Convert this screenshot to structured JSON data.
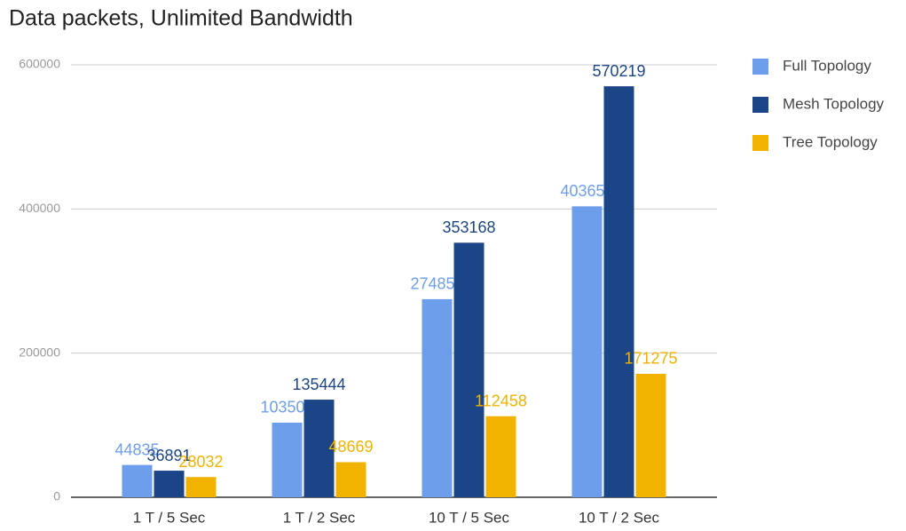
{
  "chart_data": {
    "type": "bar",
    "title": "Data packets, Unlimited Bandwidth",
    "categories": [
      "1 T / 5 Sec",
      "1 T / 2 Sec",
      "10 T / 5 Sec",
      "10 T / 2 Sec"
    ],
    "series": [
      {
        "name": "Full Topology",
        "color": "#6d9eeb",
        "values": [
          44835,
          103504,
          274855,
          403659
        ]
      },
      {
        "name": "Mesh Topology",
        "color": "#1c4587",
        "values": [
          36891,
          135444,
          353168,
          570219
        ]
      },
      {
        "name": "Tree Topology",
        "color": "#f1b300",
        "values": [
          28032,
          48669,
          112458,
          171275
        ]
      }
    ],
    "ylim": [
      0,
      600000
    ],
    "yticks": [
      0,
      200000,
      400000,
      600000
    ],
    "grid": true,
    "legend": "right"
  }
}
